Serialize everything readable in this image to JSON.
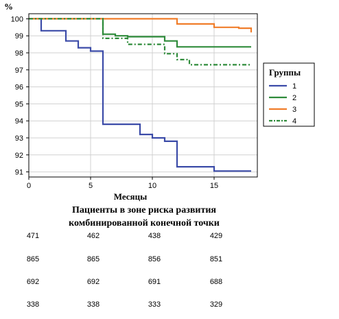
{
  "chart_data": {
    "type": "line",
    "step": true,
    "y_unit": "%",
    "xlabel": "Месяцы",
    "x_ticks": [
      0,
      5,
      10,
      15
    ],
    "y_ticks": [
      91,
      92,
      93,
      94,
      95,
      96,
      97,
      98,
      99,
      100
    ],
    "xlim": [
      0,
      18.5
    ],
    "ylim": [
      90.7,
      100.3
    ],
    "grid": true,
    "legend": {
      "title": "Группы",
      "position": "right"
    },
    "series": [
      {
        "name": "1",
        "color": "#3b4ba8",
        "dash": "solid",
        "points": [
          [
            0,
            100
          ],
          [
            1,
            100
          ],
          [
            1,
            99.3
          ],
          [
            3,
            99.3
          ],
          [
            3,
            98.7
          ],
          [
            4,
            98.7
          ],
          [
            4,
            98.3
          ],
          [
            5,
            98.3
          ],
          [
            5,
            98.1
          ],
          [
            6,
            98.1
          ],
          [
            6,
            93.8
          ],
          [
            9,
            93.8
          ],
          [
            9,
            93.2
          ],
          [
            10,
            93.2
          ],
          [
            10,
            93.0
          ],
          [
            11,
            93.0
          ],
          [
            11,
            92.8
          ],
          [
            12,
            92.8
          ],
          [
            12,
            91.3
          ],
          [
            15,
            91.3
          ],
          [
            15,
            91.05
          ],
          [
            18,
            91.05
          ]
        ]
      },
      {
        "name": "2",
        "color": "#2e8b3a",
        "dash": "solid",
        "points": [
          [
            0,
            100
          ],
          [
            6,
            100
          ],
          [
            6,
            99.1
          ],
          [
            7,
            99.1
          ],
          [
            7,
            99.0
          ],
          [
            8,
            99.0
          ],
          [
            8,
            98.95
          ],
          [
            11,
            98.95
          ],
          [
            11,
            98.7
          ],
          [
            12,
            98.7
          ],
          [
            12,
            98.35
          ],
          [
            18,
            98.35
          ]
        ]
      },
      {
        "name": "3",
        "color": "#f07d2a",
        "dash": "solid",
        "points": [
          [
            0,
            100
          ],
          [
            12,
            100
          ],
          [
            12,
            99.7
          ],
          [
            15,
            99.7
          ],
          [
            15,
            99.5
          ],
          [
            17,
            99.5
          ],
          [
            17,
            99.45
          ],
          [
            18,
            99.45
          ],
          [
            18,
            99.2
          ]
        ]
      },
      {
        "name": "4",
        "color": "#2e8b3a",
        "dash": "dashdot",
        "points": [
          [
            0,
            100
          ],
          [
            6,
            100
          ],
          [
            6,
            98.85
          ],
          [
            8,
            98.85
          ],
          [
            8,
            98.5
          ],
          [
            11,
            98.5
          ],
          [
            11,
            97.95
          ],
          [
            12,
            97.95
          ],
          [
            12,
            97.6
          ],
          [
            13,
            97.6
          ],
          [
            13,
            97.3
          ],
          [
            18,
            97.3
          ]
        ]
      }
    ]
  },
  "risk_table": {
    "title_line1": "Пациенты в зоне риска развития",
    "title_line2": "комбинированной конечной точки",
    "rows": [
      [
        "471",
        "462",
        "438",
        "429"
      ],
      [
        "865",
        "865",
        "856",
        "851"
      ],
      [
        "692",
        "692",
        "691",
        "688"
      ],
      [
        "338",
        "338",
        "333",
        "329"
      ]
    ]
  }
}
